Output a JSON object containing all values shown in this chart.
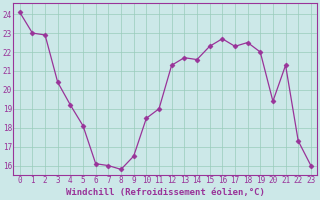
{
  "x": [
    0,
    1,
    2,
    3,
    4,
    5,
    6,
    7,
    8,
    9,
    10,
    11,
    12,
    13,
    14,
    15,
    16,
    17,
    18,
    19,
    20,
    21,
    22,
    23
  ],
  "y": [
    24.1,
    23.0,
    22.9,
    20.4,
    19.2,
    18.1,
    16.1,
    16.0,
    15.8,
    16.5,
    18.5,
    19.0,
    21.3,
    21.7,
    21.6,
    22.3,
    22.7,
    22.3,
    22.5,
    22.0,
    19.4,
    21.3,
    17.3,
    16.0
  ],
  "line_color": "#993399",
  "marker": "D",
  "marker_size": 2.5,
  "bg_color": "#cce8e8",
  "grid_color": "#99ccbb",
  "xlabel": "Windchill (Refroidissement éolien,°C)",
  "ylabel_ticks": [
    16,
    17,
    18,
    19,
    20,
    21,
    22,
    23,
    24
  ],
  "ylim": [
    15.5,
    24.6
  ],
  "xlim": [
    -0.5,
    23.5
  ],
  "tick_color": "#993399",
  "label_color": "#993399",
  "axis_fontsize": 5.5,
  "label_fontsize": 6.5
}
